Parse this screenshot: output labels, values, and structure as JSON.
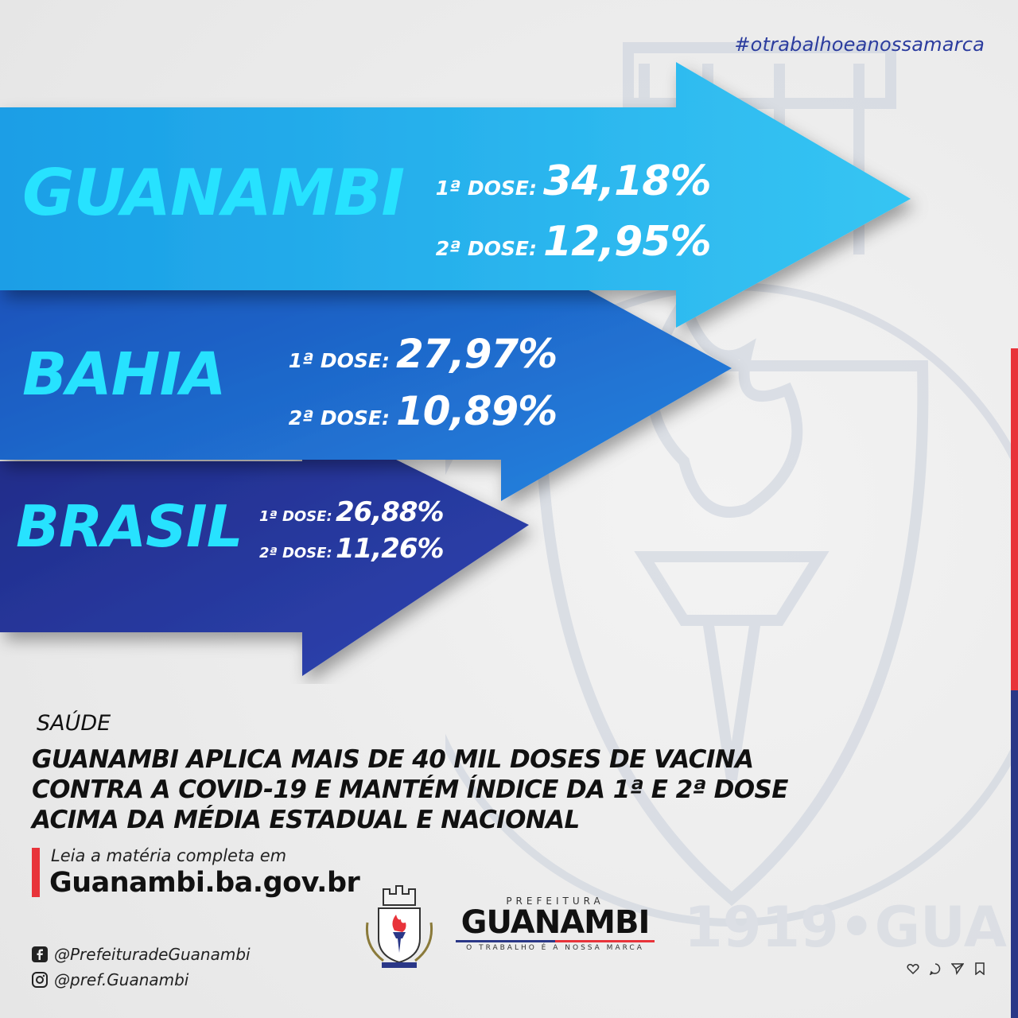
{
  "hashtag": "#otrabalhoeanossamarca",
  "regions": [
    {
      "name": "GUANAMBI",
      "dose1_label": "1ª DOSE:",
      "dose1_value": "34,18%",
      "dose2_label": "2ª DOSE:",
      "dose2_value": "12,95%"
    },
    {
      "name": "BAHIA",
      "dose1_label": "1ª DOSE:",
      "dose1_value": "27,97%",
      "dose2_label": "2ª DOSE:",
      "dose2_value": "10,89%"
    },
    {
      "name": "BRASIL",
      "dose1_label": "1ª DOSE:",
      "dose1_value": "26,88%",
      "dose2_label": "2ª DOSE:",
      "dose2_value": "11,26%"
    }
  ],
  "section": "SAÚDE",
  "headline": [
    "GUANAMBI APLICA MAIS DE 40 MIL DOSES DE VACINA",
    "CONTRA A COVID-19 E MANTÉM ÍNDICE DA 1ª E 2ª DOSE",
    "ACIMA DA MÉDIA ESTADUAL E NACIONAL"
  ],
  "cta": {
    "text": "Leia a matéria completa em",
    "link": "Guanambi.ba.gov.br"
  },
  "social": {
    "facebook": "@PrefeituradeGuanambi",
    "instagram": "@pref.Guanambi"
  },
  "brand": {
    "top": "PREFEITURA",
    "name": "GUANAMBI",
    "tagline": "O TRABALHO É A NOSSA MARCA"
  },
  "colors": {
    "region_text": "#27e2ff",
    "arrow1": "#1ab0ee",
    "arrow2": "#1b62c9",
    "arrow3": "#283090",
    "accent_red": "#e8333a",
    "accent_blue": "#2a3787"
  },
  "icons": [
    "facebook-icon",
    "instagram-icon",
    "heart-icon",
    "comment-icon",
    "send-icon",
    "bookmark-icon"
  ]
}
